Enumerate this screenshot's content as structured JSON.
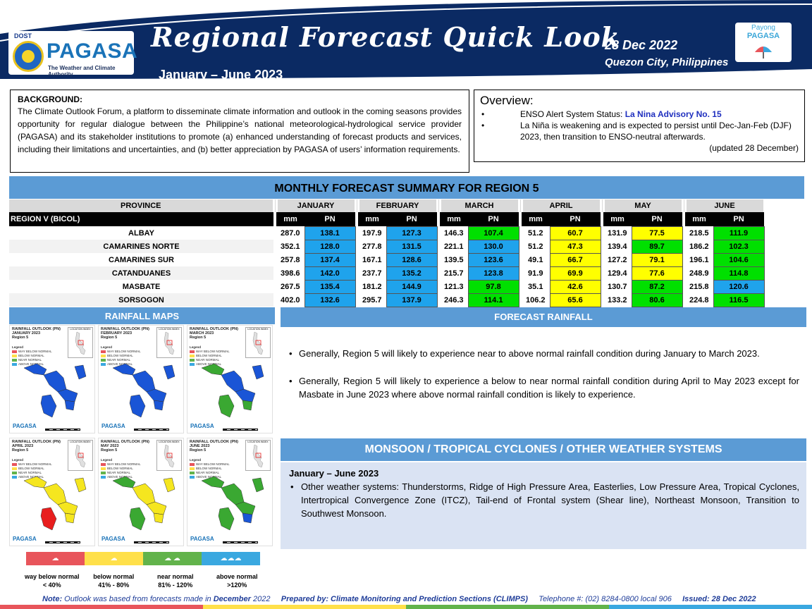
{
  "header": {
    "logo_agency": "DOST",
    "logo_name": "PAGASA",
    "logo_tagline": "The Weather and Climate Authority",
    "title": "Regional Forecast Quick Look",
    "period": "January – June 2023",
    "date": "28 Dec 2022",
    "place": "Quezon City, Philippines",
    "partner_label": "Payong",
    "partner_name": "PAGASA"
  },
  "background": {
    "heading": "BACKGROUND:",
    "text": "The Climate Outlook Forum, a platform to disseminate climate information and outlook in the coming seasons provides opportunity for regular dialogue between the Philippine’s national meteorological-hydrological service provider (PAGASA) and its stakeholder institutions to promote (a) enhanced understanding of forecast products and services, including their limitations and uncertainties, and (b) better appreciation by PAGASA of users’ information requirements."
  },
  "overview": {
    "heading": "Overview:",
    "item1_prefix": "ENSO Alert System Status: ",
    "item1_link": "La Nina Advisory No. 15",
    "item2": "La Niña is weakening and is expected to persist until Dec-Jan-Feb (DJF) 2023,  then transition to ENSO-neutral afterwards.",
    "updated": "(updated 28 December)"
  },
  "summary": {
    "title": "MONTHLY FORECAST SUMMARY FOR REGION 5",
    "province_header": "PROVINCE",
    "region_label": "REGION V (BICOL)",
    "months": [
      "JANUARY",
      "FEBRUARY",
      "MARCH",
      "APRIL",
      "MAY",
      "JUNE"
    ],
    "unit_mm": "mm",
    "unit_pn": "PN",
    "rows": [
      {
        "province": "ALBAY",
        "values": [
          [
            "287.0",
            "138.1"
          ],
          [
            "197.9",
            "127.3"
          ],
          [
            "146.3",
            "107.4"
          ],
          [
            "51.2",
            "60.7"
          ],
          [
            "131.9",
            "77.5"
          ],
          [
            "218.5",
            "111.9"
          ]
        ]
      },
      {
        "province": "CAMARINES NORTE",
        "values": [
          [
            "352.1",
            "128.0"
          ],
          [
            "277.8",
            "131.5"
          ],
          [
            "221.1",
            "130.0"
          ],
          [
            "51.2",
            "47.3"
          ],
          [
            "139.4",
            "89.7"
          ],
          [
            "186.2",
            "102.3"
          ]
        ]
      },
      {
        "province": "CAMARINES SUR",
        "values": [
          [
            "257.8",
            "137.4"
          ],
          [
            "167.1",
            "128.6"
          ],
          [
            "139.5",
            "123.6"
          ],
          [
            "49.1",
            "66.7"
          ],
          [
            "127.2",
            "79.1"
          ],
          [
            "196.1",
            "104.6"
          ]
        ]
      },
      {
        "province": "CATANDUANES",
        "values": [
          [
            "398.6",
            "142.0"
          ],
          [
            "237.7",
            "135.2"
          ],
          [
            "215.7",
            "123.8"
          ],
          [
            "91.9",
            "69.9"
          ],
          [
            "129.4",
            "77.6"
          ],
          [
            "248.9",
            "114.8"
          ]
        ]
      },
      {
        "province": "MASBATE",
        "values": [
          [
            "267.5",
            "135.4"
          ],
          [
            "181.2",
            "144.9"
          ],
          [
            "121.3",
            "97.8"
          ],
          [
            "35.1",
            "42.6"
          ],
          [
            "130.7",
            "87.2"
          ],
          [
            "215.8",
            "120.6"
          ]
        ]
      },
      {
        "province": "SORSOGON",
        "values": [
          [
            "402.0",
            "132.6"
          ],
          [
            "295.7",
            "137.9"
          ],
          [
            "246.3",
            "114.1"
          ],
          [
            "106.2",
            "65.6"
          ],
          [
            "133.2",
            "80.6"
          ],
          [
            "224.8",
            "116.5"
          ]
        ]
      }
    ]
  },
  "colors": {
    "header_navy": "#0b2a63",
    "section_blue": "#5b9bd5",
    "way_below": "#e8555b",
    "below": "#ffe04a",
    "near": "#62b34b",
    "above": "#3aa8e0",
    "pn_yellow": "#ffff00",
    "pn_green": "#00e000",
    "pn_blue": "#1fa3ec",
    "map_blue": "#1a55d6",
    "map_green": "#3aa832",
    "map_yellow": "#f5e61f",
    "map_red": "#e81e1e"
  },
  "maps": {
    "title": "RAINFALL MAPS",
    "locator_label": "LOCATION INDEX",
    "legend_heading": "Legend",
    "legend_items": [
      "WAY BELOW NORMAL",
      "BELOW NORMAL",
      "NEAR NORMAL",
      "ABOVE NORMAL"
    ],
    "panels": [
      {
        "line1": "RAINFALL OUTLOOK (PN)",
        "line2": "JANUARY 2023",
        "line3": "Region 5"
      },
      {
        "line1": "RAINFALL OUTLOOK (PN)",
        "line2": "FEBRUARY 2023",
        "line3": "Region 5"
      },
      {
        "line1": "RAINFALL OUTLOOK (PN)",
        "line2": "MARCH 2023",
        "line3": "Region 5"
      },
      {
        "line1": "RAINFALL OUTLOOK (PN)",
        "line2": "APRIL 2023",
        "line3": "Region 5"
      },
      {
        "line1": "RAINFALL OUTLOOK (PN)",
        "line2": "MAY 2023",
        "line3": "Region 5"
      },
      {
        "line1": "RAINFALL OUTLOOK (PN)",
        "line2": "JUNE 2023",
        "line3": "Region 5"
      }
    ],
    "panel_logo": "PAGASA",
    "legend_bar": [
      {
        "label": "way below normal",
        "range": "< 40%"
      },
      {
        "label": "below normal",
        "range": "41% - 80%"
      },
      {
        "label": "near normal",
        "range": "81% - 120%"
      },
      {
        "label": "above normal",
        "range": ">120%"
      }
    ]
  },
  "forecast_rainfall": {
    "title": "FORECAST RAINFALL",
    "items": [
      "Generally, Region 5 will likely to experience near to above normal rainfall condition during January to March 2023.",
      "Generally, Region 5 will likely to experience a below to near normal rainfall condition during April to May 2023 except for Masbate in June 2023 where above normal rainfall condition is likely to experience."
    ]
  },
  "monsoon": {
    "title": "MONSOON / TROPICAL CYCLONES / OTHER WEATHER SYSTEMS",
    "heading": "January – June 2023",
    "item": "Other weather systems: Thunderstorms,  Ridge of High Pressure Area,  Easterlies, Low Pressure Area, Tropical Cyclones, Intertropical Convergence Zone (ITCZ), Tail-end of Frontal system (Shear line), Northeast Monsoon, Transition to Southwest Monsoon."
  },
  "footer": {
    "note_label": "Note:",
    "note_text": " Outlook was based from forecasts made in ",
    "note_month": "December",
    "note_year": " 2022",
    "prepared": "Prepared by: Climate Monitoring and Prediction Sections (CLIMPS)",
    "telephone": "Telephone #: (02) 8284-0800 local 906",
    "issued": "Issued: 28 Dec 2022"
  }
}
